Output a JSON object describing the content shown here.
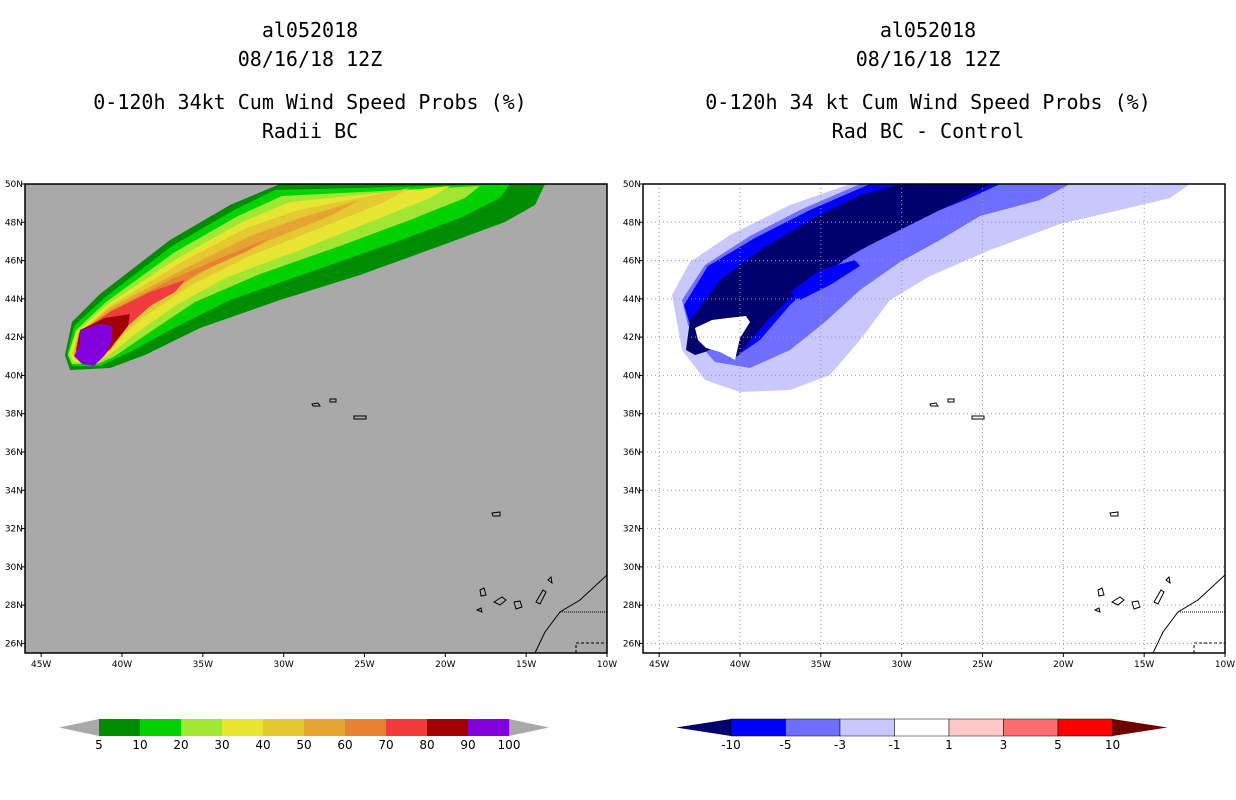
{
  "left_panel": {
    "storm_id": "al052018",
    "datetime": "08/16/18 12Z",
    "title_line1": "0-120h 34kt Cum Wind Speed Probs (%)",
    "title_line2": "Radii BC",
    "background_color": "#a9a9a9",
    "colorbar_labels": [
      "5",
      "10",
      "20",
      "30",
      "40",
      "50",
      "60",
      "70",
      "80",
      "90",
      "100"
    ],
    "colorbar_colors": [
      "#008c00",
      "#00d200",
      "#a0e632",
      "#e6e632",
      "#e6c832",
      "#e6a532",
      "#e68232",
      "#f03c3c",
      "#a00000",
      "#8200dc"
    ]
  },
  "right_panel": {
    "storm_id": "al052018",
    "datetime": "08/16/18 12Z",
    "title_line1": "0-120h 34 kt Cum Wind Speed Probs (%)",
    "title_line2": "Rad BC - Control",
    "background_color": "#ffffff",
    "colorbar_labels": [
      "-10",
      "-5",
      "-3",
      "-1",
      "1",
      "3",
      "5",
      "10"
    ],
    "colorbar_colors": [
      "#00006e",
      "#0000ff",
      "#6e6eff",
      "#c8c8ff",
      "#ffffff",
      "#ffc8c8",
      "#ff6e6e",
      "#ff0000",
      "#6e0000"
    ]
  },
  "axes": {
    "lon_labels": [
      "45W",
      "40W",
      "35W",
      "30W",
      "25W",
      "20W",
      "15W",
      "10W"
    ],
    "lat_labels": [
      "50N",
      "48N",
      "46N",
      "44N",
      "42N",
      "40N",
      "38N",
      "36N",
      "34N",
      "32N",
      "30N",
      "28N",
      "26N"
    ],
    "lon_range": [
      -46,
      -10
    ],
    "lat_range": [
      25.5,
      50
    ]
  }
}
